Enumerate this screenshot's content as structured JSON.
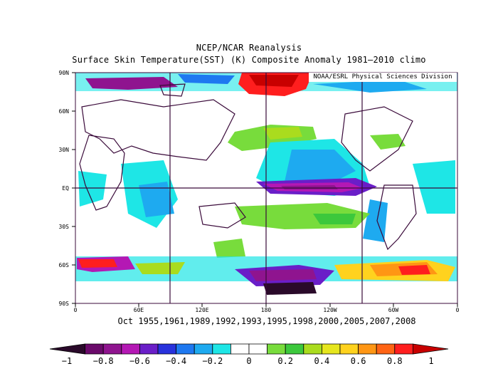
{
  "header": {
    "title": "NCEP/NCAR Reanalysis",
    "subtitle": "Surface Skin Temperature(SST) (K) Composite Anomaly 1981–2010 climo"
  },
  "credit": "NOAA/ESRL Physical Sciences Division",
  "composite_dates": "Oct 1955,1961,1989,1992,1993,1995,1998,2000,2005,2007,2008",
  "map": {
    "lat_labels": [
      "90N",
      "60N",
      "30N",
      "EQ",
      "30S",
      "60S",
      "90S"
    ],
    "lon_labels": [
      "0",
      "60E",
      "120E",
      "180",
      "120W",
      "60W",
      "0"
    ]
  },
  "colorbar": {
    "labels": [
      "-1",
      "-0.8",
      "-0.6",
      "-0.4",
      "-0.2",
      "0",
      "0.2",
      "0.4",
      "0.6",
      "0.8",
      "1"
    ],
    "colors": [
      "#2a0a2a",
      "#6a0a6a",
      "#8f148f",
      "#b418b4",
      "#6a1ec8",
      "#2832dc",
      "#1e78f0",
      "#1eaaf0",
      "#1ee6e6",
      "#ffffff",
      "#ffffff",
      "#78dc3c",
      "#3cc83c",
      "#aadc1e",
      "#e6e61e",
      "#ffd21e",
      "#ff9614",
      "#ff6414",
      "#ff1e1e",
      "#c80000"
    ]
  }
}
